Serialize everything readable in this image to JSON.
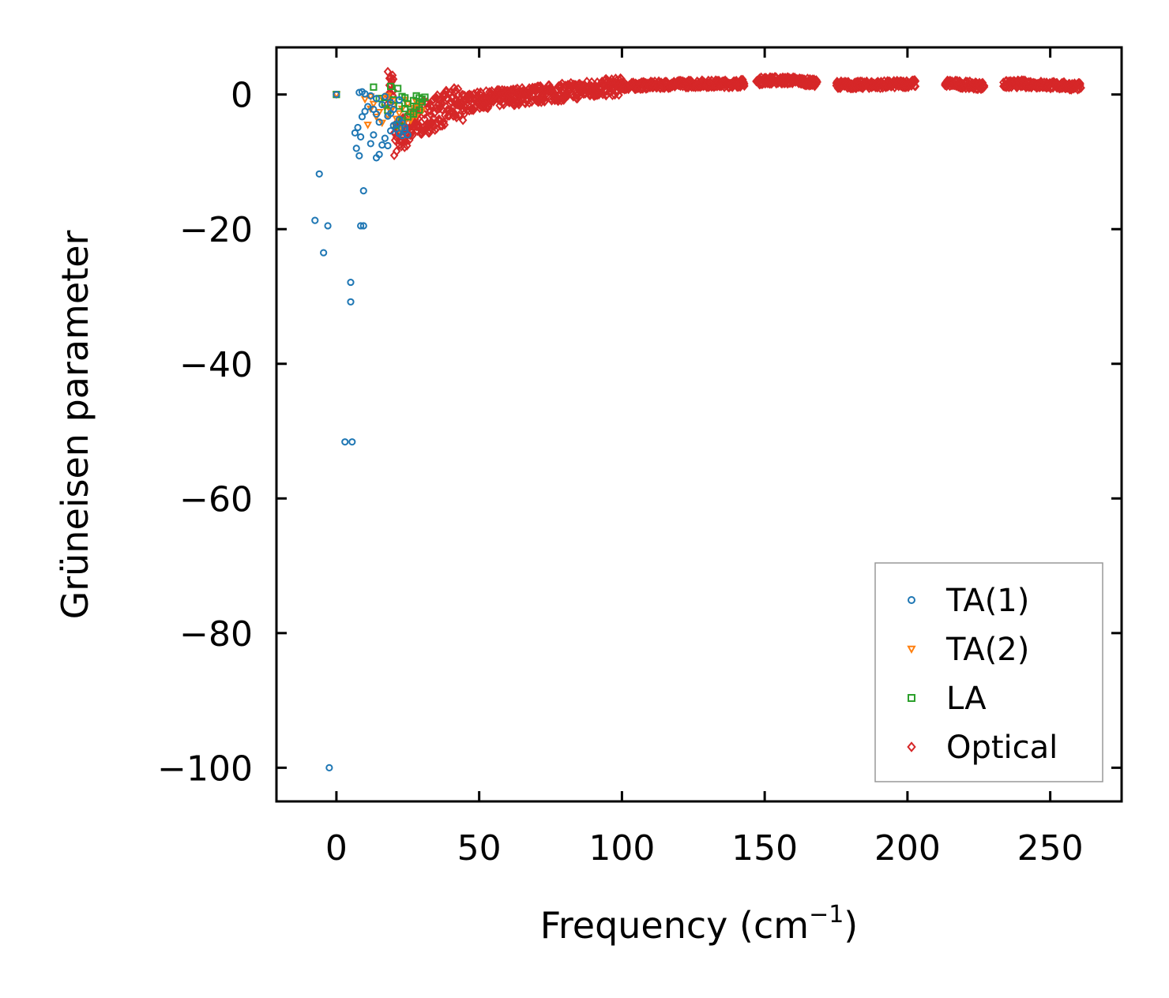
{
  "chart_data": {
    "type": "scatter",
    "title": "",
    "xlabel": "Frequency (cm",
    "xlabel_sup": "−1",
    "xlabel_close": ")",
    "ylabel": "Grüneisen parameter",
    "xlim": [
      -21,
      275
    ],
    "ylim": [
      -105,
      7
    ],
    "xticks": [
      0,
      50,
      100,
      150,
      200,
      250
    ],
    "yticks": [
      0,
      -20,
      -40,
      -60,
      -80,
      -100
    ],
    "xtick_labels": [
      "0",
      "50",
      "100",
      "150",
      "200",
      "250"
    ],
    "ytick_labels": [
      "0",
      "−20",
      "−40",
      "−60",
      "−80",
      "−100"
    ],
    "legend_position": "lower right",
    "series": [
      {
        "name": "TA(1)",
        "marker": "circle",
        "color": "#1f77b4",
        "points": [
          [
            0,
            0
          ],
          [
            -2.5,
            -100
          ],
          [
            -7.5,
            -18.7
          ],
          [
            -6,
            -11.8
          ],
          [
            -4.5,
            -23.5
          ],
          [
            -3,
            -19.5
          ],
          [
            3,
            -51.6
          ],
          [
            5.5,
            -51.6
          ],
          [
            5,
            -27.9
          ],
          [
            5,
            -30.8
          ],
          [
            8.5,
            -19.5
          ],
          [
            9.5,
            -19.5
          ],
          [
            9.5,
            -14.3
          ],
          [
            8,
            0.3
          ],
          [
            9,
            0.4
          ],
          [
            10,
            0.1
          ],
          [
            12,
            -0.2
          ],
          [
            14,
            -0.6
          ],
          [
            6.5,
            -5.7
          ],
          [
            7.5,
            -4.9
          ],
          [
            8.5,
            -6.3
          ],
          [
            7,
            -8
          ],
          [
            8,
            -9.1
          ],
          [
            9,
            -3.3
          ],
          [
            10,
            -2.5
          ],
          [
            11,
            -1.8
          ],
          [
            12,
            -7.3
          ],
          [
            13,
            -6
          ],
          [
            14,
            -9.4
          ],
          [
            15,
            -8.9
          ],
          [
            16,
            -7.5
          ],
          [
            17,
            -6.5
          ],
          [
            18,
            -7.6
          ],
          [
            19,
            -5.4
          ],
          [
            20,
            -4.6
          ],
          [
            21,
            -5.1
          ],
          [
            22,
            -5.8
          ],
          [
            23,
            -4.2
          ],
          [
            24,
            -5.3
          ],
          [
            25,
            -6
          ],
          [
            16,
            -1.5
          ],
          [
            17,
            -0.3
          ],
          [
            18,
            -3.2
          ],
          [
            19,
            -2.8
          ],
          [
            20,
            -2.2
          ],
          [
            21,
            -4.4
          ],
          [
            22,
            -3.7
          ],
          [
            23,
            -6.1
          ],
          [
            24,
            -4.9
          ],
          [
            15,
            -4.1
          ],
          [
            14,
            -2.9
          ],
          [
            13,
            -2.2
          ],
          [
            19,
            -1.2
          ],
          [
            22,
            -0.8
          ]
        ]
      },
      {
        "name": "TA(2)",
        "marker": "triangle-down",
        "color": "#ff7f0e",
        "points": [
          [
            0,
            0
          ],
          [
            10,
            -0.7
          ],
          [
            11,
            -4.5
          ],
          [
            12,
            -2.1
          ],
          [
            13,
            -1.4
          ],
          [
            14,
            -3.3
          ],
          [
            15,
            -2.6
          ],
          [
            16,
            -4.2
          ],
          [
            17,
            -1.9
          ],
          [
            18,
            -3.1
          ],
          [
            19,
            -2.5
          ],
          [
            20,
            -1.7
          ],
          [
            21,
            -3.6
          ],
          [
            22,
            -2.8
          ],
          [
            23,
            -2.1
          ],
          [
            24,
            -4
          ],
          [
            25,
            -1.4
          ],
          [
            26,
            -2.9
          ],
          [
            27,
            -2
          ],
          [
            28,
            -3.1
          ],
          [
            29,
            -1.6
          ],
          [
            30,
            -2.4
          ],
          [
            12,
            -0.3
          ],
          [
            16,
            -0.5
          ],
          [
            20,
            -0.9
          ],
          [
            24,
            -0.8
          ],
          [
            26,
            -3.8
          ],
          [
            28,
            -1.1
          ],
          [
            22,
            -5.2
          ],
          [
            18,
            -0.2
          ]
        ]
      },
      {
        "name": "LA",
        "marker": "square",
        "color": "#2ca02c",
        "points": [
          [
            0,
            0
          ],
          [
            13,
            1.1
          ],
          [
            19,
            1.2
          ],
          [
            21.5,
            0.9
          ],
          [
            15,
            -0.6
          ],
          [
            17,
            -1.3
          ],
          [
            20,
            -0.8
          ],
          [
            22,
            -1.7
          ],
          [
            23,
            -0.3
          ],
          [
            24,
            -2.1
          ],
          [
            25,
            -1.4
          ],
          [
            26,
            -2.6
          ],
          [
            27,
            -0.9
          ],
          [
            28,
            -1.8
          ],
          [
            29,
            -2.3
          ],
          [
            30,
            -1.1
          ],
          [
            31,
            -0.4
          ],
          [
            29,
            -0.5
          ],
          [
            27,
            -2.9
          ],
          [
            25,
            -3.3
          ],
          [
            23,
            -3.9
          ],
          [
            21,
            -4.6
          ],
          [
            30,
            -0.7
          ],
          [
            28,
            -0.2
          ],
          [
            24,
            -0.5
          ],
          [
            18,
            -2.4
          ]
        ]
      },
      {
        "name": "Optical",
        "marker": "diamond",
        "color": "#d62728",
        "trend": [
          [
            20,
            -6.8
          ],
          [
            25,
            -5.2
          ],
          [
            30,
            -3.6
          ],
          [
            35,
            -2.6
          ],
          [
            40,
            -1.7
          ],
          [
            50,
            -0.9
          ],
          [
            60,
            -0.4
          ],
          [
            70,
            0
          ],
          [
            80,
            0.4
          ],
          [
            90,
            0.9
          ],
          [
            100,
            1.2
          ],
          [
            110,
            1.4
          ],
          [
            125,
            1.6
          ],
          [
            140,
            1.6
          ],
          [
            150,
            2.1
          ],
          [
            160,
            2.1
          ],
          [
            170,
            1.6
          ],
          [
            180,
            1.4
          ],
          [
            195,
            1.5
          ],
          [
            210,
            1.8
          ],
          [
            225,
            1.3
          ],
          [
            240,
            1.6
          ],
          [
            260,
            1.2
          ]
        ],
        "gaps": [
          [
            143,
            147
          ],
          [
            168.5,
            175
          ],
          [
            203,
            213
          ],
          [
            227,
            233.5
          ]
        ],
        "x_range": [
          18,
          261
        ],
        "outliers": [
          [
            22,
            -7.5
          ],
          [
            33,
            -4.2
          ],
          [
            38,
            -3.1
          ]
        ]
      }
    ]
  }
}
